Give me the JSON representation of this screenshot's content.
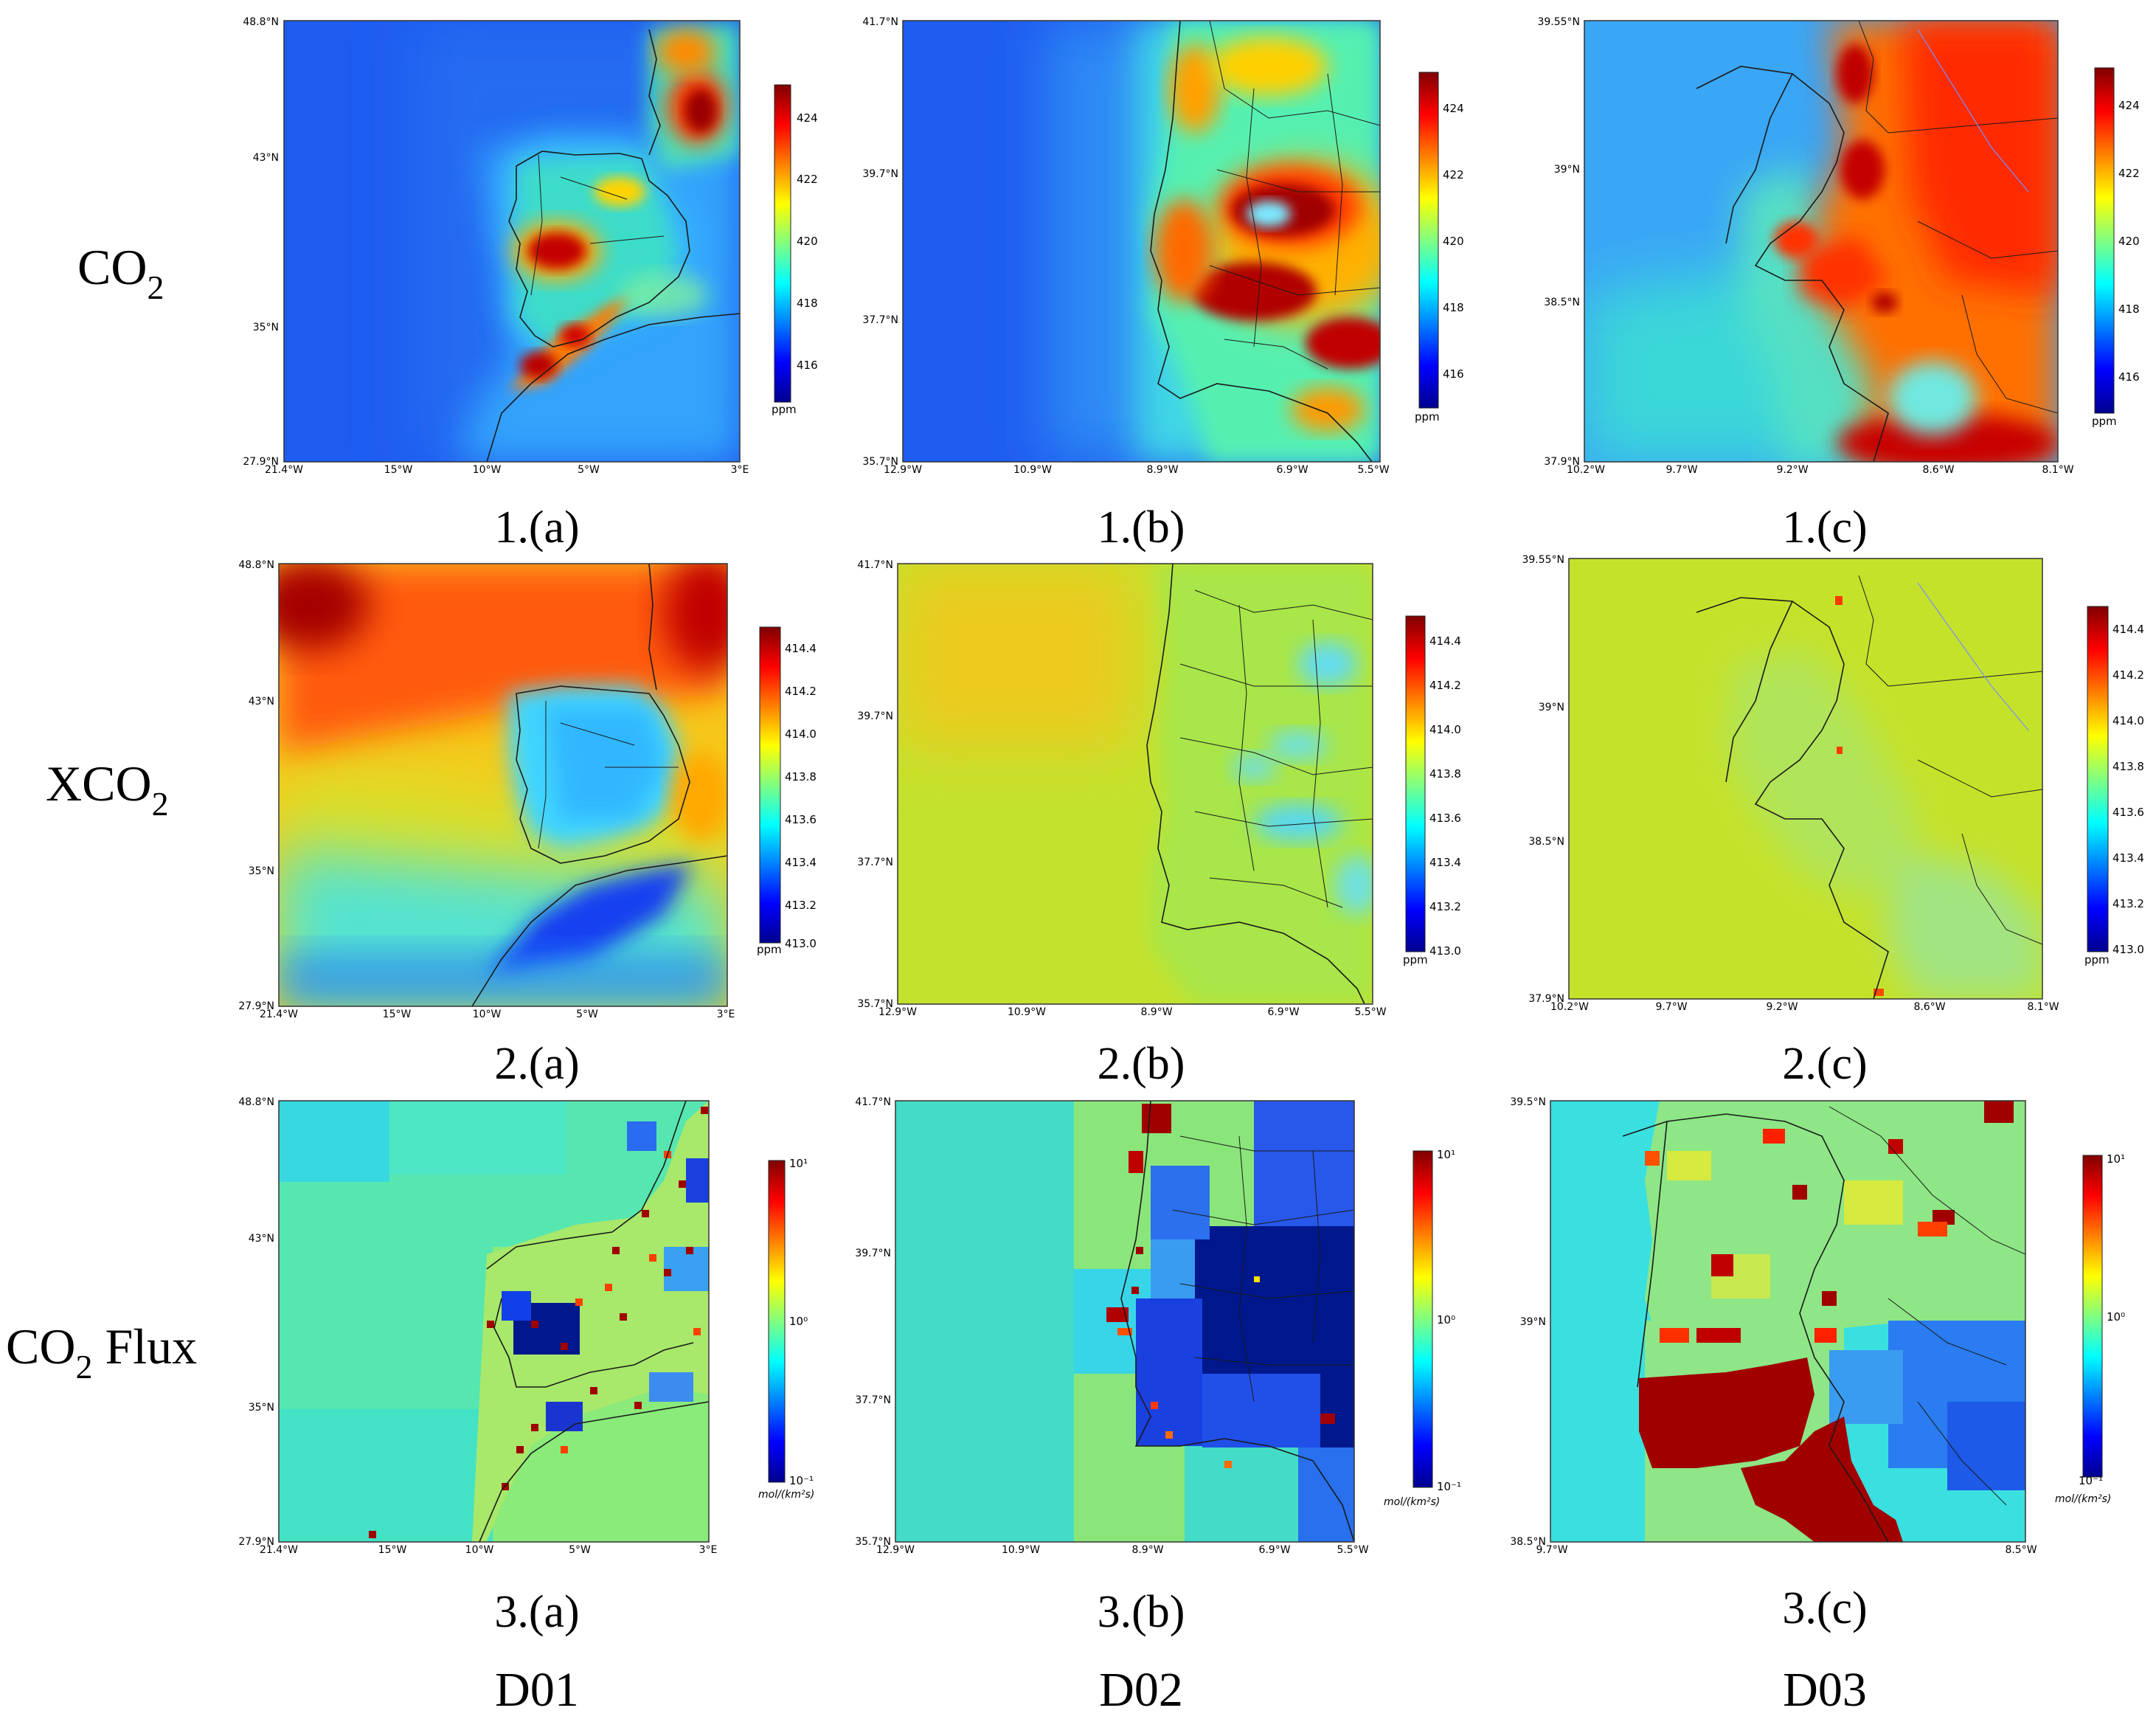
{
  "row_labels": [
    {
      "main": "CO",
      "sub": "2",
      "suffix": ""
    },
    {
      "main": "XCO",
      "sub": "2",
      "suffix": ""
    },
    {
      "main": "CO",
      "sub": "2",
      "suffix": " Flux"
    }
  ],
  "column_labels": [
    "D01",
    "D02",
    "D03"
  ],
  "colors": {
    "ocean_co2_d01": "#1e5cf0",
    "land_hot": "#e83a10",
    "xco2_ocean": "#b9e23a",
    "flux_background": "#3fe0c0",
    "flux_low": "#00188c",
    "coastline": "#1a1a1a"
  },
  "palette": "jet",
  "panels": [
    {
      "id": "1a",
      "caption": "1.(a)",
      "variable": "CO2",
      "domain": "D01",
      "lat_labels": [
        "48.8°N",
        "43°N",
        "35°N",
        "27.9°N"
      ],
      "lon_labels": [
        "21.4°W",
        "15°W",
        "10°W",
        "5°W",
        "3°E"
      ],
      "colorbar": {
        "ticks": [
          "424",
          "422",
          "420",
          "418",
          "416"
        ],
        "unit": "ppm",
        "range": [
          415,
          425
        ],
        "scale": "linear"
      }
    },
    {
      "id": "1b",
      "caption": "1.(b)",
      "variable": "CO2",
      "domain": "D02",
      "lat_labels": [
        "41.7°N",
        "39.7°N",
        "37.7°N",
        "35.7°N"
      ],
      "lon_labels": [
        "12.9°W",
        "10.9°W",
        "8.9°W",
        "6.9°W",
        "5.5°W"
      ],
      "colorbar": {
        "ticks": [
          "424",
          "422",
          "420",
          "418",
          "416"
        ],
        "unit": "ppm",
        "range": [
          415,
          425
        ],
        "scale": "linear"
      }
    },
    {
      "id": "1c",
      "caption": "1.(c)",
      "variable": "CO2",
      "domain": "D03",
      "lat_labels": [
        "39.55°N",
        "39°N",
        "38.5°N",
        "37.9°N"
      ],
      "lon_labels": [
        "10.2°W",
        "9.7°W",
        "9.2°W",
        "8.6°W",
        "8.1°W"
      ],
      "colorbar": {
        "ticks": [
          "424",
          "422",
          "420",
          "418",
          "416"
        ],
        "unit": "ppm",
        "range": [
          415,
          425
        ],
        "scale": "linear"
      }
    },
    {
      "id": "2a",
      "caption": "2.(a)",
      "variable": "XCO2",
      "domain": "D01",
      "lat_labels": [
        "48.8°N",
        "43°N",
        "35°N",
        "27.9°N"
      ],
      "lon_labels": [
        "21.4°W",
        "15°W",
        "10°W",
        "5°W",
        "3°E"
      ],
      "colorbar": {
        "ticks": [
          "414.4",
          "414.2",
          "414.0",
          "413.8",
          "413.6",
          "413.4",
          "413.2",
          "413.0"
        ],
        "unit": "ppm",
        "range": [
          413.0,
          414.5
        ],
        "scale": "linear"
      }
    },
    {
      "id": "2b",
      "caption": "2.(b)",
      "variable": "XCO2",
      "domain": "D02",
      "lat_labels": [
        "41.7°N",
        "39.7°N",
        "37.7°N",
        "35.7°N"
      ],
      "lon_labels": [
        "12.9°W",
        "10.9°W",
        "8.9°W",
        "6.9°W",
        "5.5°W"
      ],
      "colorbar": {
        "ticks": [
          "414.4",
          "414.2",
          "414.0",
          "413.8",
          "413.6",
          "413.4",
          "413.2",
          "413.0"
        ],
        "unit": "ppm",
        "range": [
          413.0,
          414.5
        ],
        "scale": "linear"
      }
    },
    {
      "id": "2c",
      "caption": "2.(c)",
      "variable": "XCO2",
      "domain": "D03",
      "lat_labels": [
        "39.55°N",
        "39°N",
        "38.5°N",
        "37.9°N"
      ],
      "lon_labels": [
        "10.2°W",
        "9.7°W",
        "9.2°W",
        "8.6°W",
        "8.1°W"
      ],
      "colorbar": {
        "ticks": [
          "414.4",
          "414.2",
          "414.0",
          "413.8",
          "413.6",
          "413.4",
          "413.2",
          "413.0"
        ],
        "unit": "ppm",
        "range": [
          413.0,
          414.5
        ],
        "scale": "linear"
      }
    },
    {
      "id": "3a",
      "caption": "3.(a)",
      "variable": "CO2 Flux",
      "domain": "D01",
      "lat_labels": [
        "48.8°N",
        "43°N",
        "35°N",
        "27.9°N"
      ],
      "lon_labels": [
        "21.4°W",
        "15°W",
        "10°W",
        "5°W",
        "3°E"
      ],
      "colorbar": {
        "ticks": [
          "10¹",
          "10⁰",
          "10⁻¹"
        ],
        "unit": "mol/(km²s)",
        "range": [
          0.1,
          10
        ],
        "scale": "log"
      }
    },
    {
      "id": "3b",
      "caption": "3.(b)",
      "variable": "CO2 Flux",
      "domain": "D02",
      "lat_labels": [
        "41.7°N",
        "39.7°N",
        "37.7°N",
        "35.7°N"
      ],
      "lon_labels": [
        "12.9°W",
        "10.9°W",
        "8.9°W",
        "6.9°W",
        "5.5°W"
      ],
      "colorbar": {
        "ticks": [
          "10¹",
          "10⁰",
          "10⁻¹"
        ],
        "unit": "mol/(km²s)",
        "range": [
          0.1,
          10
        ],
        "scale": "log"
      }
    },
    {
      "id": "3c",
      "caption": "3.(c)",
      "variable": "CO2 Flux",
      "domain": "D03",
      "lat_labels": [
        "39.5°N",
        "39°N",
        "38.5°N"
      ],
      "lon_labels": [
        "9.7°W",
        "8.5°W"
      ],
      "colorbar": {
        "ticks": [
          "10¹",
          "10⁰",
          "10⁻¹"
        ],
        "unit": "mol/(km²s)",
        "range": [
          0.1,
          10
        ],
        "scale": "log"
      }
    }
  ]
}
